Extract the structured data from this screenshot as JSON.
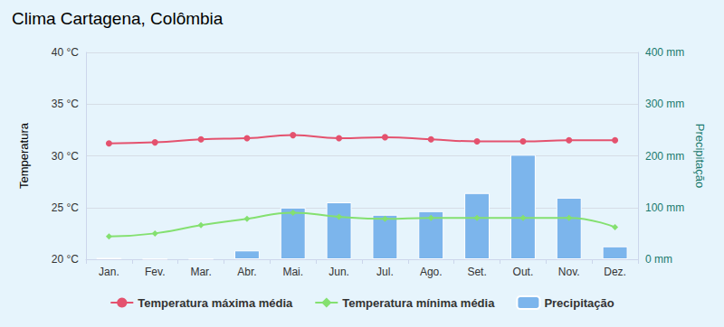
{
  "chart_data": {
    "type": "bar",
    "title": "Clima Cartagena, Colômbia",
    "categories": [
      "Jan.",
      "Fev.",
      "Mar.",
      "Abr.",
      "Mai.",
      "Jun.",
      "Jul.",
      "Ago.",
      "Set.",
      "Out.",
      "Nov.",
      "Dez."
    ],
    "y_label": "Temperatura",
    "y2_label": "Precipitação",
    "ylim": [
      20,
      40
    ],
    "yticks": [
      {
        "value": 20,
        "label": "20 °C"
      },
      {
        "value": 25,
        "label": "25 °C"
      },
      {
        "value": 30,
        "label": "30 °C"
      },
      {
        "value": 35,
        "label": "35 °C"
      },
      {
        "value": 40,
        "label": "40 °C"
      }
    ],
    "y2lim": [
      0,
      400
    ],
    "y2ticks": [
      {
        "value": 0,
        "label": "0 mm"
      },
      {
        "value": 100,
        "label": "100 mm"
      },
      {
        "value": 200,
        "label": "200 mm"
      },
      {
        "value": 300,
        "label": "300 mm"
      },
      {
        "value": 400,
        "label": "400 mm"
      }
    ],
    "grid": true,
    "legend": "bottom",
    "series": [
      {
        "name": "Temperatura máxima média",
        "type": "line",
        "marker": "circle",
        "color": "#e4526e",
        "values": [
          31.2,
          31.3,
          31.6,
          31.7,
          32.0,
          31.7,
          31.8,
          31.6,
          31.4,
          31.4,
          31.5,
          31.5
        ]
      },
      {
        "name": "Temperatura mínima média",
        "type": "line",
        "marker": "diamond",
        "color": "#84e070",
        "values": [
          22.2,
          22.5,
          23.3,
          23.9,
          24.5,
          24.1,
          23.9,
          24.0,
          24.0,
          24.0,
          24.0,
          23.1
        ]
      },
      {
        "name": "Precipitação",
        "type": "bar",
        "axis": "y2",
        "color": "#7cb5ec",
        "values": [
          3,
          1,
          1,
          17,
          100,
          110,
          86,
          93,
          128,
          202,
          119,
          25
        ]
      }
    ]
  }
}
